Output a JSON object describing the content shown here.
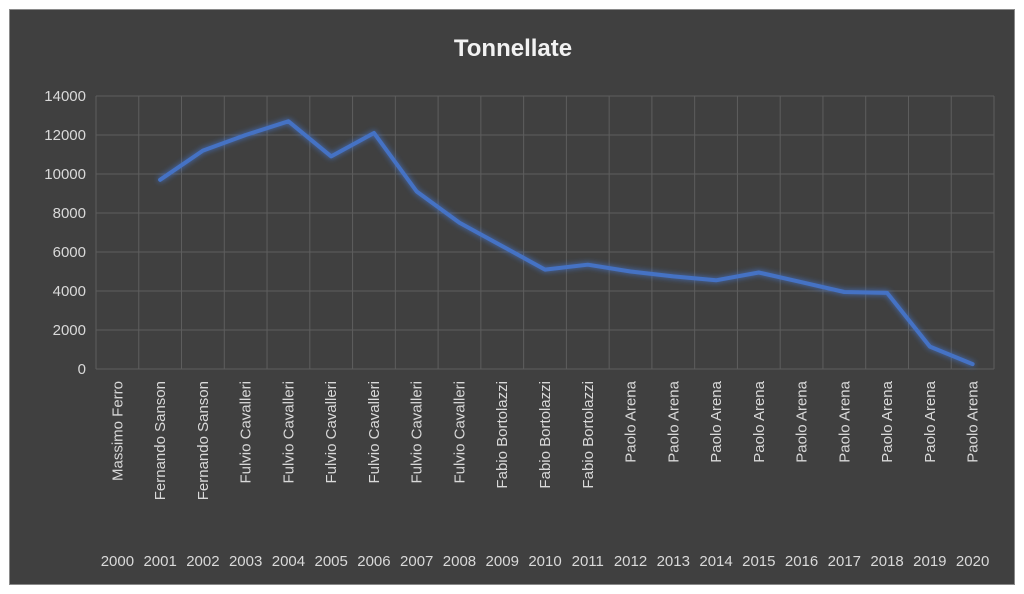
{
  "chart_data": {
    "type": "line",
    "title": "Tonnellate",
    "xlabel": "",
    "ylabel": "",
    "ylim": [
      0,
      14000
    ],
    "y_ticks": [
      0,
      2000,
      4000,
      6000,
      8000,
      10000,
      12000,
      14000
    ],
    "grid": true,
    "legend": "none",
    "colors": {
      "background": "#404040",
      "grid": "#5e5e5e",
      "line": "#4472c4",
      "text": "#d9d9d9"
    },
    "categories": [
      {
        "name": "Massimo Ferro",
        "year": "2000"
      },
      {
        "name": "Fernando Sanson",
        "year": "2001"
      },
      {
        "name": "Fernando Sanson",
        "year": "2002"
      },
      {
        "name": "Fulvio Cavalleri",
        "year": "2003"
      },
      {
        "name": "Fulvio Cavalleri",
        "year": "2004"
      },
      {
        "name": "Fulvio Cavalleri",
        "year": "2005"
      },
      {
        "name": "Fulvio Cavalleri",
        "year": "2006"
      },
      {
        "name": "Fulvio Cavalleri",
        "year": "2007"
      },
      {
        "name": "Fulvio Cavalleri",
        "year": "2008"
      },
      {
        "name": "Fabio Bortolazzi",
        "year": "2009"
      },
      {
        "name": "Fabio Bortolazzi",
        "year": "2010"
      },
      {
        "name": "Fabio Bortolazzi",
        "year": "2011"
      },
      {
        "name": "Paolo Arena",
        "year": "2012"
      },
      {
        "name": "Paolo Arena",
        "year": "2013"
      },
      {
        "name": "Paolo Arena",
        "year": "2014"
      },
      {
        "name": "Paolo Arena",
        "year": "2015"
      },
      {
        "name": "Paolo Arena",
        "year": "2016"
      },
      {
        "name": "Paolo Arena",
        "year": "2017"
      },
      {
        "name": "Paolo Arena",
        "year": "2018"
      },
      {
        "name": "Paolo Arena",
        "year": "2019"
      },
      {
        "name": "Paolo Arena",
        "year": "2020"
      }
    ],
    "series": [
      {
        "values": [
          null,
          9700,
          11200,
          12000,
          12700,
          10900,
          12100,
          9100,
          7500,
          6300,
          5100,
          5350,
          5000,
          4750,
          4550,
          4950,
          4450,
          3950,
          3900,
          1150,
          250
        ]
      }
    ]
  }
}
